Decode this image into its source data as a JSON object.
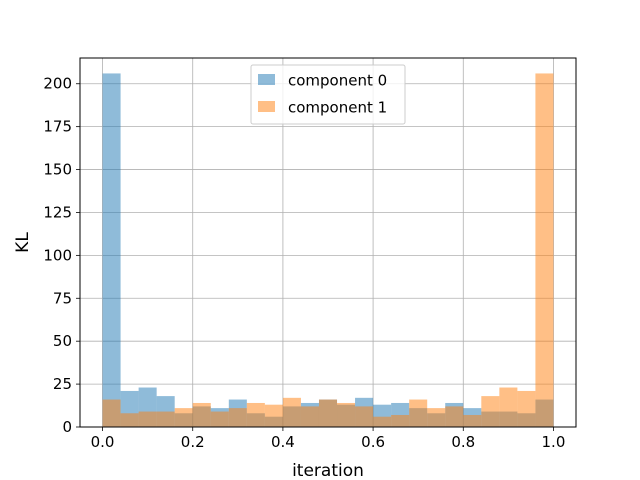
{
  "chart_data": {
    "type": "bar",
    "xlabel": "iteration",
    "ylabel": "KL",
    "xlim": [
      -0.05,
      1.05
    ],
    "ylim": [
      0,
      215
    ],
    "x_ticks": [
      0.0,
      0.2,
      0.4,
      0.6,
      0.8,
      1.0
    ],
    "x_tick_labels": [
      "0.0",
      "0.2",
      "0.4",
      "0.6",
      "0.8",
      "1.0"
    ],
    "y_ticks": [
      0,
      25,
      50,
      75,
      100,
      125,
      150,
      175,
      200
    ],
    "y_tick_labels": [
      "0",
      "25",
      "50",
      "75",
      "100",
      "125",
      "150",
      "175",
      "200"
    ],
    "grid": true,
    "legend_position": "top-center",
    "bin_edges": [
      0.0,
      0.04,
      0.08,
      0.12,
      0.16,
      0.2,
      0.24,
      0.28,
      0.32,
      0.36,
      0.4,
      0.44,
      0.48,
      0.52,
      0.56,
      0.6,
      0.64,
      0.68,
      0.72,
      0.76,
      0.8,
      0.84,
      0.88,
      0.92,
      0.96,
      1.0
    ],
    "series": [
      {
        "name": "component 0",
        "color": "#1f77b4",
        "opacity": 0.5,
        "values": [
          206,
          21,
          23,
          18,
          8,
          12,
          11,
          16,
          8,
          6,
          12,
          14,
          16,
          13,
          17,
          13,
          14,
          11,
          8,
          14,
          11,
          9,
          9,
          8,
          16
        ]
      },
      {
        "name": "component 1",
        "color": "#ff7f0e",
        "opacity": 0.5,
        "values": [
          16,
          8,
          9,
          9,
          11,
          14,
          9,
          11,
          14,
          13,
          17,
          12,
          16,
          14,
          12,
          6,
          7,
          16,
          11,
          12,
          7,
          18,
          23,
          21,
          206
        ]
      }
    ]
  }
}
